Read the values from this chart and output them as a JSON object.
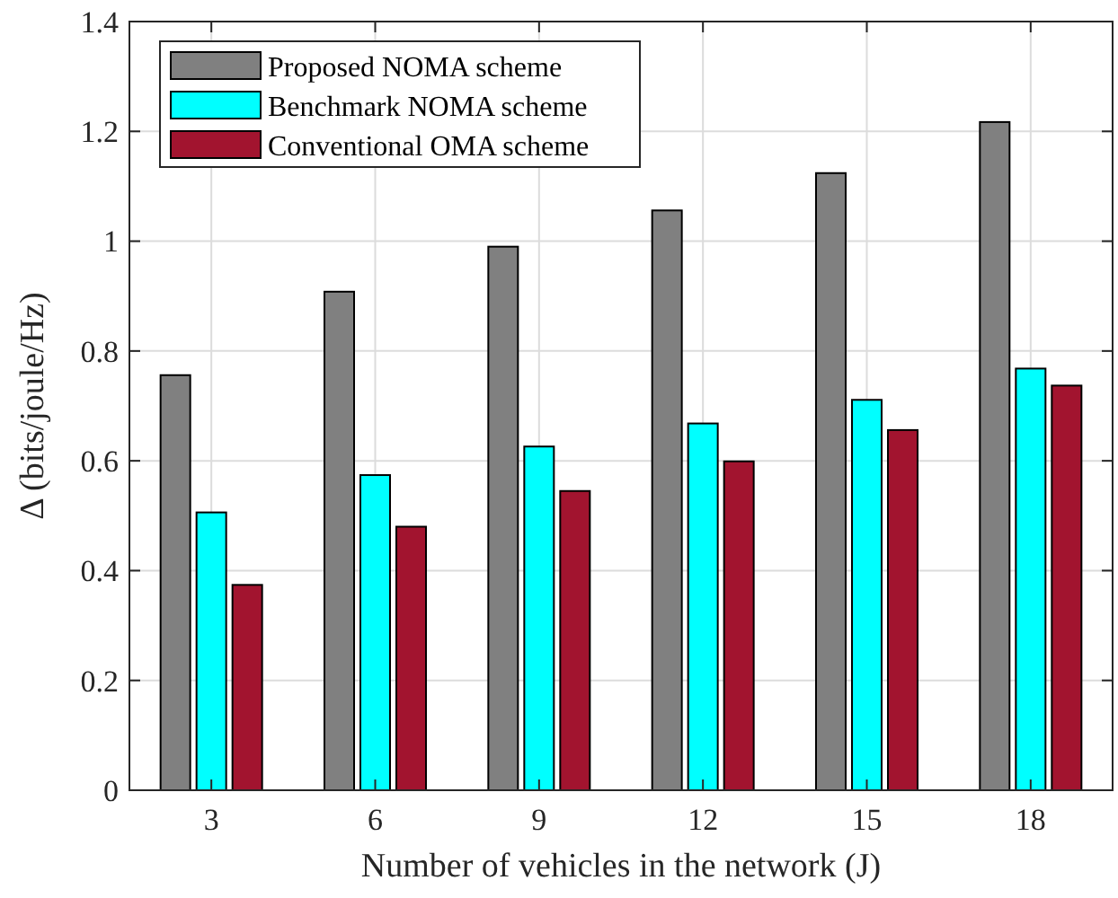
{
  "chart_data": {
    "type": "bar",
    "xlabel": "Number of vehicles in the network (J)",
    "ylabel": "Δ (bits/joule/Hz)",
    "categories": [
      "3",
      "6",
      "9",
      "12",
      "15",
      "18"
    ],
    "series": [
      {
        "name": "Proposed NOMA scheme",
        "color": "#808080",
        "values": [
          0.756,
          0.908,
          0.99,
          1.056,
          1.124,
          1.217
        ]
      },
      {
        "name": "Benchmark NOMA scheme",
        "color": "#00ffff",
        "values": [
          0.506,
          0.574,
          0.626,
          0.668,
          0.711,
          0.768
        ]
      },
      {
        "name": "Conventional OMA scheme",
        "color": "#a2142f",
        "values": [
          0.374,
          0.48,
          0.545,
          0.599,
          0.656,
          0.737
        ]
      }
    ],
    "ylim": [
      0,
      1.4
    ],
    "yticks": [
      0,
      0.2,
      0.4,
      0.6,
      0.8,
      1,
      1.2,
      1.4
    ],
    "grid": true,
    "legend": "top left"
  }
}
